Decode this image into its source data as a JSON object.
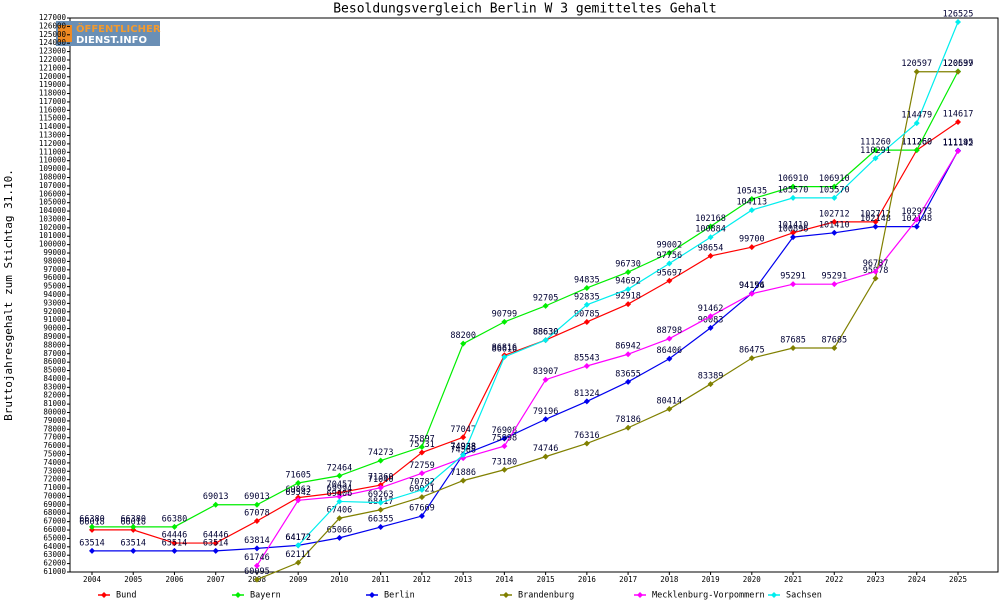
{
  "chart_data": {
    "type": "line",
    "title": "Besoldungsvergleich Berlin W 3 gemitteltes Gehalt",
    "y_label": "Bruttojahresgehalt zum Stichtag 31.10.",
    "logo": [
      "ÖFFENTLICHER",
      "DIENST.INFO"
    ],
    "categories": [
      "2004",
      "2005",
      "2006",
      "2007",
      "2008",
      "2009",
      "2010",
      "2011",
      "2012",
      "2013",
      "2014",
      "2015",
      "2016",
      "2017",
      "2018",
      "2019",
      "2020",
      "2021",
      "2022",
      "2023",
      "2024",
      "2025"
    ],
    "series": [
      {
        "name": "Bund",
        "color": "#ff0000",
        "values": [
          66018,
          66018,
          64446,
          64446,
          67078,
          69863,
          70457,
          71360,
          75231,
          77047,
          86816,
          88630,
          90785,
          92918,
          95697,
          98654,
          99700,
          101410,
          102712,
          102712,
          111260,
          114617
        ]
      },
      {
        "name": "Bayern",
        "color": "#00ee00",
        "values": [
          66380,
          66380,
          66380,
          69013,
          69013,
          71605,
          72464,
          74273,
          75897,
          88200,
          90799,
          92705,
          94835,
          96730,
          99002,
          102168,
          105435,
          106910,
          106910,
          111260,
          111260,
          120639
        ]
      },
      {
        "name": "Berlin",
        "color": "#0000ee",
        "values": [
          63514,
          63514,
          63514,
          63514,
          63814,
          64172,
          65066,
          66355,
          67669,
          74988,
          76908,
          79196,
          81324,
          83655,
          86406,
          90083,
          94194,
          100896,
          101410,
          102148,
          102148,
          111195
        ]
      },
      {
        "name": "Brandenburg",
        "color": "#808000",
        "values": [
          null,
          null,
          null,
          null,
          60095,
          62111,
          67406,
          68417,
          69921,
          71886,
          73180,
          74746,
          76316,
          78186,
          80414,
          83389,
          86475,
          87685,
          87685,
          95978,
          120597,
          120597
        ]
      },
      {
        "name": "Mecklenburg-Vorpommern",
        "color": "#ff00ff",
        "values": [
          null,
          null,
          null,
          null,
          61746,
          69542,
          69994,
          71040,
          72759,
          74568,
          75998,
          83907,
          85543,
          86942,
          88798,
          91462,
          94156,
          95291,
          95291,
          96787,
          102973,
          111142
        ]
      },
      {
        "name": "Sachsen",
        "color": "#00eeee",
        "values": [
          null,
          null,
          null,
          null,
          null,
          64172,
          69406,
          69263,
          70782,
          74938,
          86616,
          88630,
          92835,
          94692,
          97756,
          100884,
          104113,
          105570,
          105570,
          110291,
          114479,
          126525
        ]
      }
    ],
    "ylim": [
      61000,
      127000
    ],
    "yticks": [
      61000,
      62000,
      63000,
      64000,
      65000,
      66000,
      67000,
      68000,
      69000,
      70000,
      71000,
      72000,
      73000,
      74000,
      75000,
      76000,
      77000,
      78000,
      79000,
      80000,
      81000,
      82000,
      83000,
      84000,
      85000,
      86000,
      87000,
      88000,
      89000,
      90000,
      91000,
      92000,
      93000,
      94000,
      95000,
      96000,
      97000,
      98000,
      99000,
      100000,
      101000,
      102000,
      103000,
      104000,
      105000,
      106000,
      107000,
      108000,
      109000,
      110000,
      111000,
      112000,
      113000,
      114000,
      115000,
      116000,
      117000,
      118000,
      119000,
      120000,
      121000,
      122000,
      123000,
      124000,
      125000,
      126000,
      127000
    ]
  }
}
